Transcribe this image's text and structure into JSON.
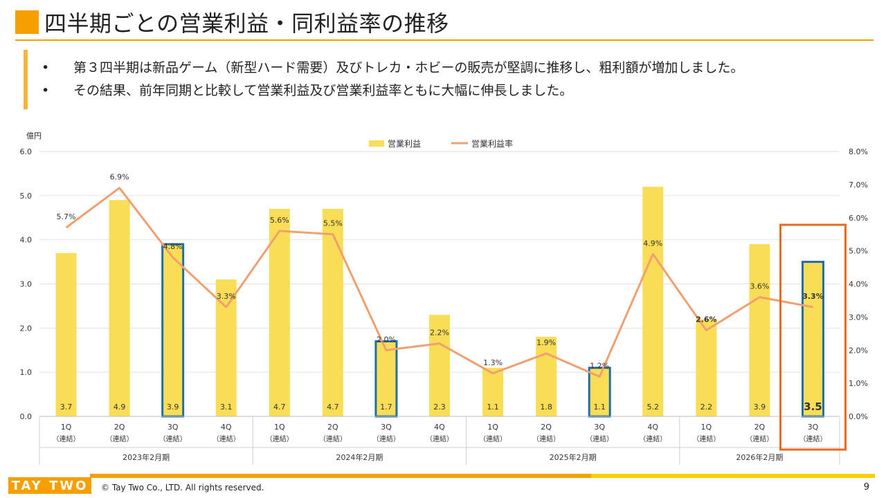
{
  "header": {
    "title": "四半期ごとの営業利益・同利益率の推移"
  },
  "bullets": {
    "marker": "•",
    "items": [
      "第３四半期は新品ゲーム（新型ハード需要）及びトレカ・ホビーの販売が堅調に推移し、粗利額が増加しました。",
      "その結果、前年同期と比較して営業利益及び営業利益率ともに大幅に伸長しました。"
    ]
  },
  "chart_data": {
    "type": "bar+line",
    "y_unit": "億円",
    "ylim_left": [
      0,
      6
    ],
    "ylim_right": [
      0,
      8
    ],
    "left_ticks": [
      "0.0",
      "1.0",
      "2.0",
      "3.0",
      "4.0",
      "5.0",
      "6.0"
    ],
    "right_ticks": [
      "0.0%",
      "1.0%",
      "2.0%",
      "3.0%",
      "4.0%",
      "5.0%",
      "6.0%",
      "7.0%",
      "8.0%"
    ],
    "legend": {
      "bar": "営業利益",
      "line": "営業利益率"
    },
    "categories": [
      "1Q",
      "2Q",
      "3Q",
      "4Q",
      "1Q",
      "2Q",
      "3Q",
      "4Q",
      "1Q",
      "2Q",
      "3Q",
      "4Q",
      "1Q",
      "2Q",
      "3Q"
    ],
    "category_sublabel": "（連結）",
    "groups": [
      "2023年2月期",
      "2024年2月期",
      "2025年2月期",
      "2026年2月期"
    ],
    "group_sizes": [
      4,
      4,
      4,
      3
    ],
    "bar_values": [
      3.7,
      4.9,
      3.9,
      3.1,
      4.7,
      4.7,
      1.7,
      2.3,
      1.1,
      1.8,
      1.1,
      5.2,
      2.2,
      3.9,
      3.5
    ],
    "bar_labels": [
      "3.7",
      "4.9",
      "3.9",
      "3.1",
      "4.7",
      "4.7",
      "1.7",
      "2.3",
      "1.1",
      "1.8",
      "1.1",
      "5.2",
      "2.2",
      "3.9",
      "3.5"
    ],
    "rate_values": [
      5.7,
      6.9,
      4.8,
      3.3,
      5.6,
      5.5,
      2.0,
      2.2,
      1.3,
      1.9,
      1.2,
      4.9,
      2.6,
      3.6,
      3.3
    ],
    "rate_labels": [
      "5.7%",
      "6.9%",
      "4.8%",
      "3.3%",
      "5.6%",
      "5.5%",
      "2.0%",
      "2.2%",
      "1.3%",
      "1.9%",
      "1.2%",
      "4.9%",
      "2.6%",
      "3.6%",
      "3.3%"
    ],
    "highlighted_indices": [
      2,
      6,
      10,
      14
    ],
    "current_index": 14,
    "colors": {
      "bar": "#f9dd57",
      "line": "#f0a070",
      "highlight_border": "#1f6fa6",
      "current_box": "#e86a1a",
      "axis_text": "#333333"
    }
  },
  "footer": {
    "logo": "TAY TWO",
    "copyright": "© Tay Two Co., LTD. All rights reserved.",
    "page_number": "9"
  }
}
